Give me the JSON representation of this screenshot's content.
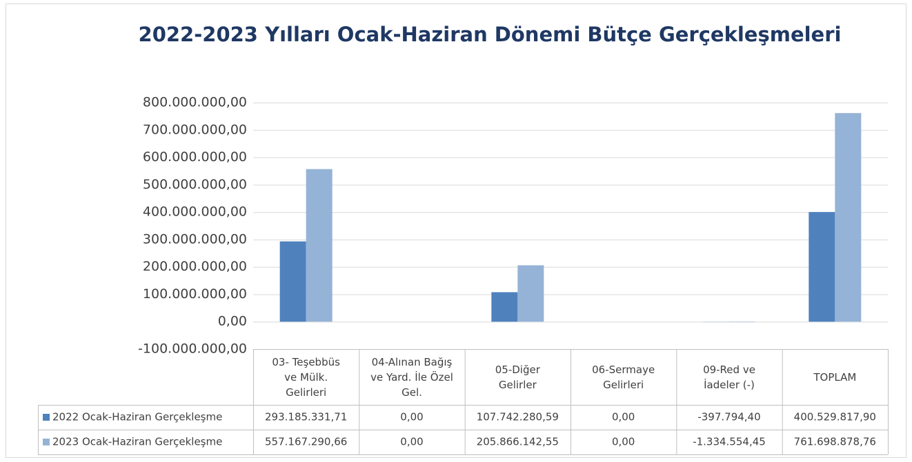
{
  "chart_data": {
    "type": "bar",
    "title": "2022-2023 Yılları Ocak-Haziran Dönemi Bütçe Gerçekleşmeleri",
    "categories": [
      "03- Teşebbüs ve Mülk. Gelirleri",
      "04-Alınan Bağış ve Yard. İle Özel Gel.",
      "05-Diğer Gelirler",
      "06-Sermaye Gelirleri",
      "09-Red ve İadeler (-)",
      "TOPLAM"
    ],
    "series": [
      {
        "name": "2022 Ocak-Haziran Gerçekleşme",
        "color": "#4f81bd",
        "values": [
          293185331.71,
          0,
          107742280.59,
          0,
          -397794.4,
          400529817.9
        ],
        "value_labels": [
          "293.185.331,71",
          "0,00",
          "107.742.280,59",
          "0,00",
          "-397.794,40",
          "400.529.817,90"
        ]
      },
      {
        "name": "2023 Ocak-Haziran Gerçekleşme",
        "color": "#95b3d7",
        "values": [
          557167290.66,
          0,
          205866142.55,
          0,
          -1334554.45,
          761698878.76
        ],
        "value_labels": [
          "557.167.290,66",
          "0,00",
          "205.866.142,55",
          "0,00",
          "-1.334.554,45",
          "761.698.878,76"
        ]
      }
    ],
    "ylim": [
      -100000000,
      800000000
    ],
    "yticks": [
      {
        "value": -100000000,
        "label": "-100.000.000,00"
      },
      {
        "value": 0,
        "label": "0,00"
      },
      {
        "value": 100000000,
        "label": "100.000.000,00"
      },
      {
        "value": 200000000,
        "label": "200.000.000,00"
      },
      {
        "value": 300000000,
        "label": "300.000.000,00"
      },
      {
        "value": 400000000,
        "label": "400.000.000,00"
      },
      {
        "value": 500000000,
        "label": "500.000.000,00"
      },
      {
        "value": 600000000,
        "label": "600.000.000,00"
      },
      {
        "value": 700000000,
        "label": "700.000.000,00"
      },
      {
        "value": 800000000,
        "label": "800.000.000,00"
      }
    ],
    "grid": true
  }
}
